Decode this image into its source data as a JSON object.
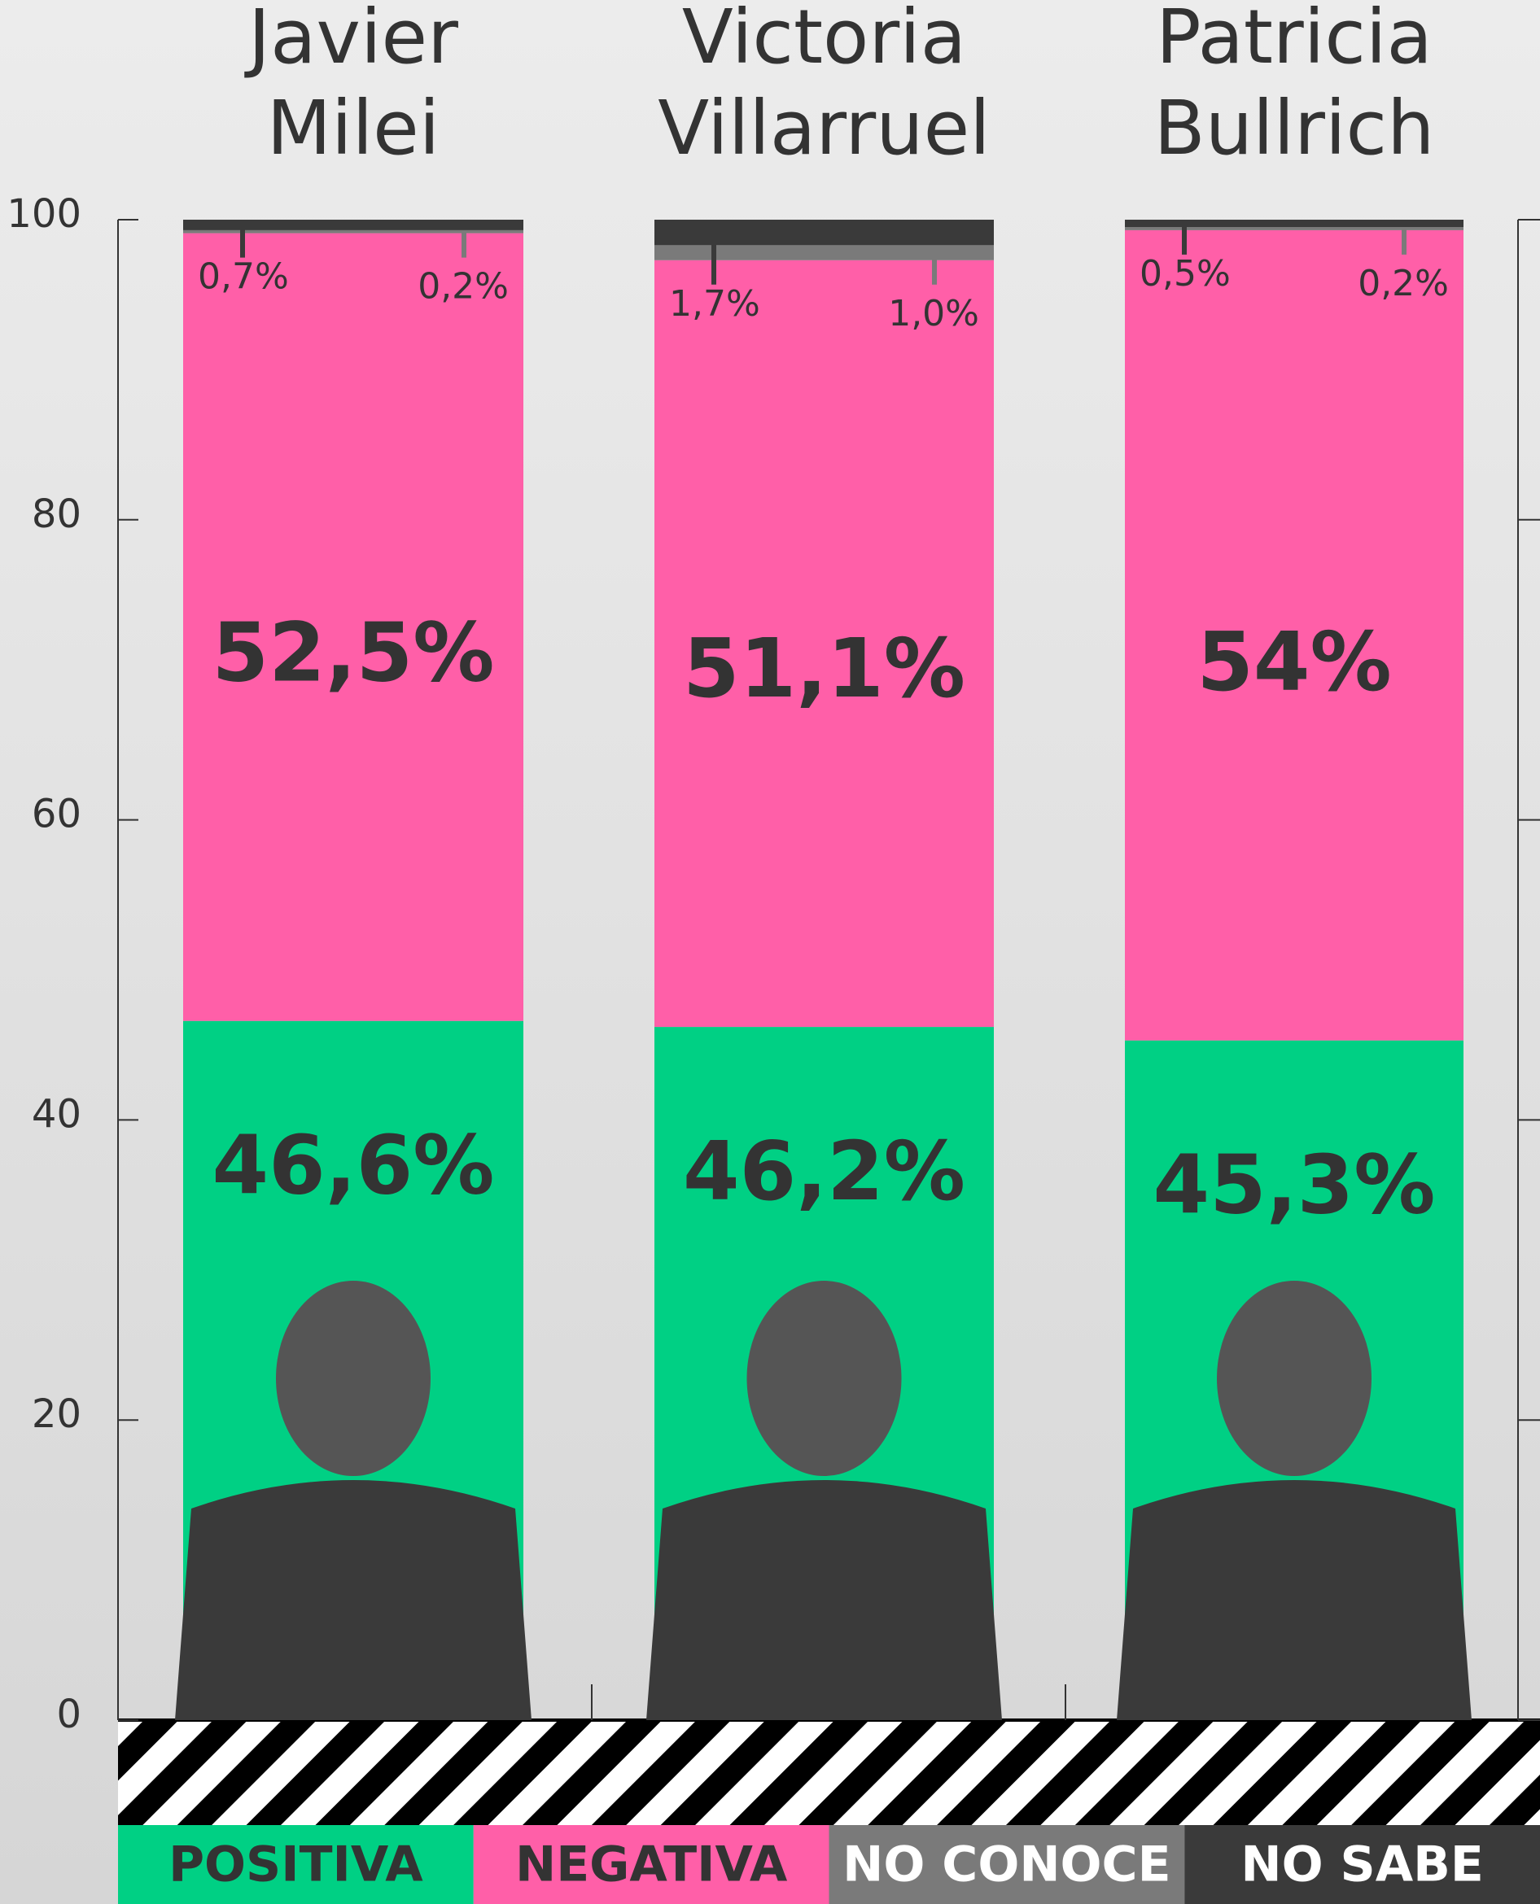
{
  "chart_data": {
    "type": "bar",
    "stacked": true,
    "categories": [
      "Javier Milei",
      "Victoria Villarruel",
      "Patricia Bullrich"
    ],
    "series": [
      {
        "name": "POSITIVA",
        "color": "#00d084",
        "values": [
          46.6,
          46.2,
          45.3
        ],
        "value_labels": [
          "46,6%",
          "46,2%",
          "45,3%"
        ]
      },
      {
        "name": "NEGATIVA",
        "color": "#ff5fa8",
        "values": [
          52.5,
          51.1,
          54
        ],
        "value_labels": [
          "52,5%",
          "51,1%",
          "54%"
        ]
      },
      {
        "name": "NO CONOCE",
        "color": "#7a7a7a",
        "values": [
          0.2,
          1.0,
          0.2
        ],
        "value_labels": [
          "0,2%",
          "1,0%",
          "0,2%"
        ]
      },
      {
        "name": "NO SABE",
        "color": "#3a3a3a",
        "values": [
          0.7,
          1.7,
          0.5
        ],
        "value_labels": [
          "0,7%",
          "1,7%",
          "0,5%"
        ]
      }
    ],
    "ylim": [
      0,
      100
    ],
    "yticks": [
      0,
      20,
      40,
      60,
      80,
      100
    ],
    "grid": false
  }
}
